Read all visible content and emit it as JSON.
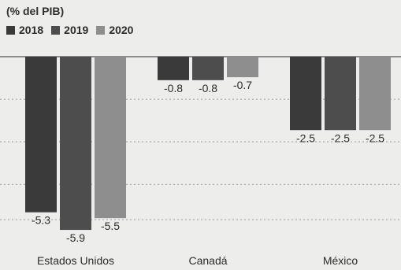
{
  "chart_data": {
    "type": "bar",
    "subtitle": "(% del PIB)",
    "categories": [
      "Estados Unidos",
      "Canadá",
      "México"
    ],
    "series": [
      {
        "name": "2018",
        "values": [
          -5.3,
          -0.8,
          -2.5
        ],
        "color": "#3a3a3a",
        "labels": [
          "-5.3",
          "-0.8",
          "-2.5"
        ]
      },
      {
        "name": "2019",
        "values": [
          -5.9,
          -0.8,
          -2.5
        ],
        "color": "#4d4d4d",
        "labels": [
          "-5.9",
          "-0.8",
          "-2.5"
        ]
      },
      {
        "name": "2020",
        "values": [
          -5.5,
          -0.7,
          -2.5
        ],
        "color": "#8e8e8e",
        "labels": [
          "-5.5",
          "-0.7",
          "-2.5"
        ]
      }
    ],
    "ylim": [
      -6,
      0
    ],
    "grid": true,
    "legend_position": "top-left"
  }
}
